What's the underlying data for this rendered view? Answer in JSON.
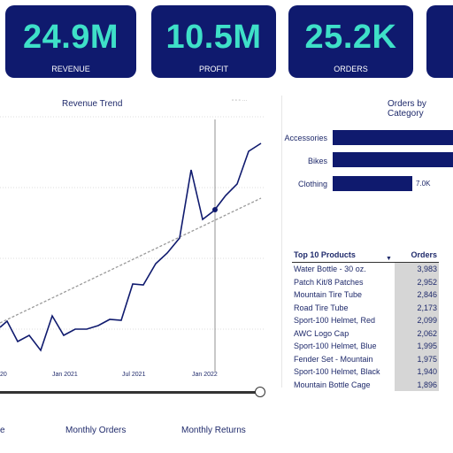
{
  "kpis": [
    {
      "value": "24.9M",
      "label": "REVENUE"
    },
    {
      "value": "10.5M",
      "label": "PROFIT"
    },
    {
      "value": "25.2K",
      "label": "ORDERS"
    }
  ],
  "revenue_trend": {
    "title": "Revenue Trend",
    "x_ticks": [
      "20",
      "Jan 2021",
      "Jul 2021",
      "Jan 2022"
    ]
  },
  "orders_by_category": {
    "title": "Orders by Category",
    "categories": [
      "Accessories",
      "Bikes",
      "Clothing"
    ],
    "clothing_label": "7.0K"
  },
  "top_products": {
    "header_product": "Top 10 Products",
    "header_orders": "Orders",
    "rows": [
      {
        "name": "Water Bottle - 30 oz.",
        "orders": "3,983"
      },
      {
        "name": "Patch Kit/8 Patches",
        "orders": "2,952"
      },
      {
        "name": "Mountain Tire Tube",
        "orders": "2,846"
      },
      {
        "name": "Road Tire Tube",
        "orders": "2,173"
      },
      {
        "name": "Sport-100 Helmet, Red",
        "orders": "2,099"
      },
      {
        "name": "AWC Logo Cap",
        "orders": "2,062"
      },
      {
        "name": "Sport-100 Helmet, Blue",
        "orders": "1,995"
      },
      {
        "name": "Fender Set - Mountain",
        "orders": "1,975"
      },
      {
        "name": "Sport-100 Helmet, Black",
        "orders": "1,940"
      },
      {
        "name": "Mountain Bottle Cage",
        "orders": "1,896"
      }
    ]
  },
  "footer_tabs": [
    "e",
    "Monthly Orders",
    "Monthly Returns"
  ],
  "colors": {
    "kpi_bg": "#0f1a6e",
    "kpi_value": "#3ee0c8",
    "line": "#0f1a6e",
    "trend": "#9a9a9a"
  }
}
